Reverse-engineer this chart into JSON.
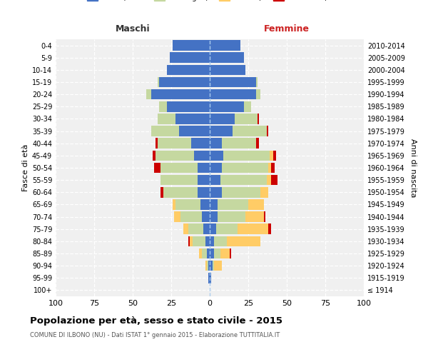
{
  "age_groups": [
    "100+",
    "95-99",
    "90-94",
    "85-89",
    "80-84",
    "75-79",
    "70-74",
    "65-69",
    "60-64",
    "55-59",
    "50-54",
    "45-49",
    "40-44",
    "35-39",
    "30-34",
    "25-29",
    "20-24",
    "15-19",
    "10-14",
    "5-9",
    "0-4"
  ],
  "birth_years": [
    "≤ 1914",
    "1915-1919",
    "1920-1924",
    "1925-1929",
    "1930-1934",
    "1935-1939",
    "1940-1944",
    "1945-1949",
    "1950-1954",
    "1955-1959",
    "1960-1964",
    "1965-1969",
    "1970-1974",
    "1975-1979",
    "1980-1984",
    "1985-1989",
    "1990-1994",
    "1995-1999",
    "2000-2004",
    "2005-2009",
    "2010-2014"
  ],
  "maschi": {
    "celibi": [
      0,
      1,
      1,
      2,
      3,
      4,
      5,
      6,
      8,
      8,
      8,
      10,
      12,
      20,
      22,
      28,
      38,
      33,
      28,
      26,
      24
    ],
    "coniugati": [
      0,
      0,
      1,
      3,
      8,
      10,
      14,
      16,
      22,
      24,
      24,
      25,
      22,
      18,
      12,
      5,
      3,
      1,
      0,
      0,
      0
    ],
    "vedovi": [
      0,
      0,
      1,
      2,
      2,
      3,
      4,
      2,
      0,
      0,
      0,
      0,
      0,
      0,
      0,
      0,
      0,
      0,
      0,
      0,
      0
    ],
    "divorziati": [
      0,
      0,
      0,
      0,
      1,
      0,
      0,
      0,
      2,
      0,
      4,
      2,
      1,
      0,
      0,
      0,
      0,
      0,
      0,
      0,
      0
    ]
  },
  "femmine": {
    "nubili": [
      0,
      1,
      2,
      3,
      3,
      4,
      5,
      5,
      8,
      7,
      8,
      9,
      8,
      15,
      16,
      22,
      30,
      30,
      23,
      22,
      20
    ],
    "coniugate": [
      0,
      0,
      1,
      4,
      8,
      14,
      18,
      20,
      25,
      30,
      30,
      30,
      22,
      22,
      15,
      5,
      3,
      1,
      0,
      0,
      0
    ],
    "vedove": [
      0,
      0,
      5,
      6,
      22,
      20,
      12,
      10,
      5,
      3,
      2,
      2,
      0,
      0,
      0,
      0,
      0,
      0,
      0,
      0,
      0
    ],
    "divorziate": [
      0,
      0,
      0,
      1,
      0,
      2,
      1,
      0,
      0,
      4,
      2,
      2,
      2,
      1,
      1,
      0,
      0,
      0,
      0,
      0,
      0
    ]
  },
  "colors": {
    "celibi_nubili": "#4472C4",
    "coniugati": "#C5D8A0",
    "vedovi": "#FFCC66",
    "divorziati": "#CC0000"
  },
  "xlim": 100,
  "title": "Popolazione per età, sesso e stato civile - 2015",
  "subtitle": "COMUNE DI ILBONO (NU) - Dati ISTAT 1° gennaio 2015 - Elaborazione TUTTITALIA.IT",
  "ylabel_left": "Fasce di età",
  "ylabel_right": "Anni di nascita",
  "header_left": "Maschi",
  "header_right": "Femmine",
  "bg_color": "#FFFFFF",
  "plot_bg_color": "#F0F0F0"
}
